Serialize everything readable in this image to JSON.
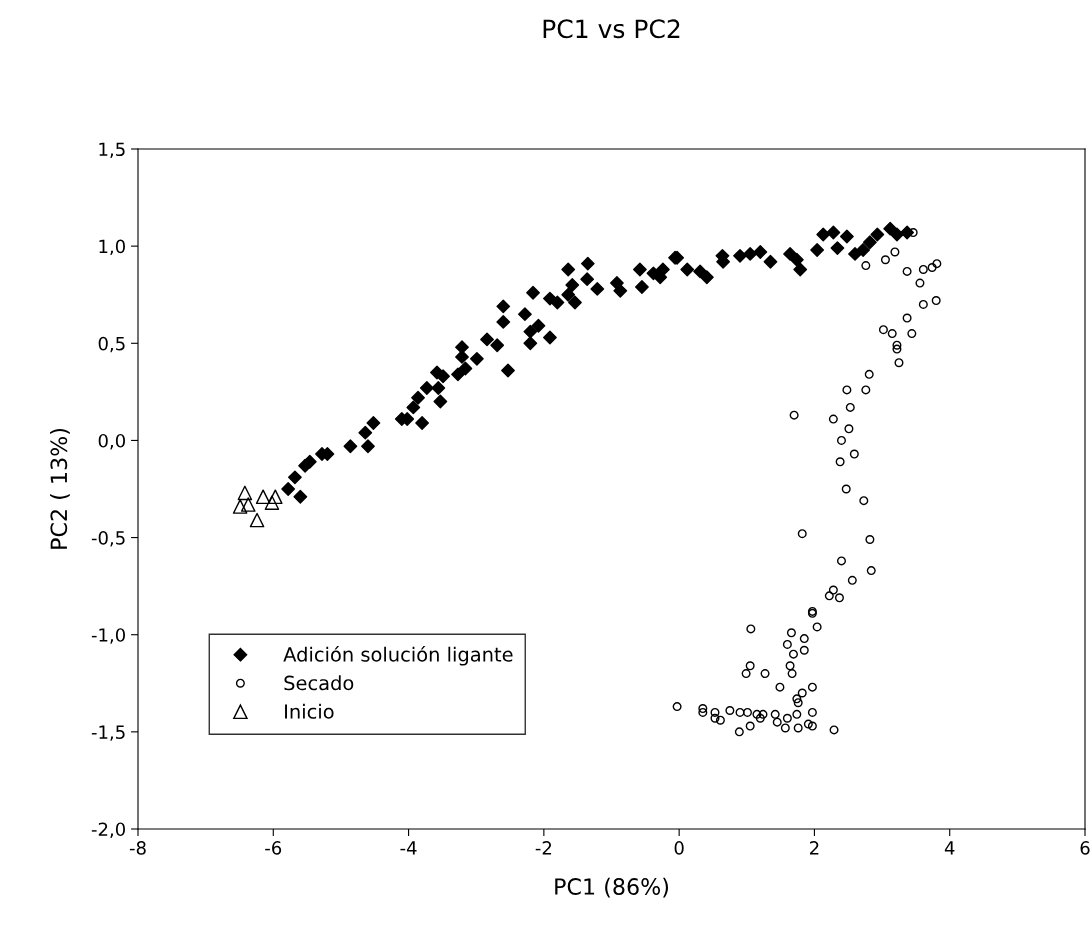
{
  "chart_data": {
    "type": "scatter",
    "title": "PC1 vs PC2",
    "xlabel": "PC1 (86%)",
    "ylabel": "PC2 ( 13%)",
    "xlim": [
      -8,
      6
    ],
    "xticks": [
      -8,
      -6,
      -4,
      -2,
      0,
      2,
      4,
      6
    ],
    "ylim": [
      -2.0,
      1.5
    ],
    "yticks": [
      {
        "value": -2.0,
        "label": "-2,0"
      },
      {
        "value": -1.5,
        "label": "-1,5"
      },
      {
        "value": -1.0,
        "label": "-1,0"
      },
      {
        "value": -0.5,
        "label": "-0,5"
      },
      {
        "value": 0.0,
        "label": "0,0"
      },
      {
        "value": 0.5,
        "label": "0,5"
      },
      {
        "value": 1.0,
        "label": "1,0"
      },
      {
        "value": 1.5,
        "label": "1,5"
      }
    ],
    "grid": false,
    "legend": "lower left",
    "series": [
      {
        "name": "Adición solución ligante",
        "color": "#000000",
        "marker": "diamond",
        "x": [
          -5.78,
          -5.6,
          -5.68,
          -5.53,
          -5.46,
          -5.28,
          -5.2,
          -4.86,
          -4.64,
          -4.6,
          -4.52,
          -4.1,
          -4.02,
          -3.8,
          -3.93,
          -3.86,
          -3.73,
          -3.56,
          -3.53,
          -3.58,
          -3.49,
          -3.27,
          -3.16,
          -3.21,
          -3.21,
          -2.99,
          -2.84,
          -2.69,
          -2.53,
          -2.6,
          -2.6,
          -2.28,
          -2.2,
          -2.2,
          -2.08,
          -1.91,
          -2.16,
          -1.91,
          -1.8,
          -1.64,
          -1.54,
          -1.64,
          -1.58,
          -1.35,
          -1.36,
          -1.21,
          -0.92,
          -0.87,
          -0.55,
          -0.58,
          -0.38,
          -0.24,
          -0.03,
          -0.28,
          -0.06,
          0.12,
          0.31,
          0.41,
          0.64,
          0.65,
          0.9,
          1.05,
          1.2,
          1.35,
          1.64,
          1.74,
          1.79,
          2.04,
          2.13,
          2.28,
          2.34,
          2.48,
          2.6,
          2.72,
          2.82,
          2.93,
          3.12,
          3.22,
          3.37
        ],
        "values": [
          -0.25,
          -0.29,
          -0.19,
          -0.13,
          -0.11,
          -0.07,
          -0.07,
          -0.03,
          0.04,
          -0.03,
          0.09,
          0.11,
          0.11,
          0.09,
          0.17,
          0.22,
          0.27,
          0.27,
          0.2,
          0.35,
          0.33,
          0.34,
          0.37,
          0.43,
          0.48,
          0.42,
          0.52,
          0.49,
          0.36,
          0.61,
          0.69,
          0.65,
          0.56,
          0.5,
          0.59,
          0.53,
          0.76,
          0.73,
          0.71,
          0.75,
          0.71,
          0.88,
          0.8,
          0.91,
          0.83,
          0.78,
          0.81,
          0.77,
          0.79,
          0.88,
          0.86,
          0.88,
          0.94,
          0.84,
          0.94,
          0.88,
          0.87,
          0.84,
          0.95,
          0.92,
          0.95,
          0.96,
          0.97,
          0.92,
          0.96,
          0.93,
          0.88,
          0.98,
          1.06,
          1.07,
          0.99,
          1.05,
          0.96,
          0.98,
          1.02,
          1.06,
          1.09,
          1.06,
          1.07
        ]
      },
      {
        "name": "Secado",
        "color": "#000000",
        "marker": "circle",
        "x": [
          3.46,
          3.19,
          3.05,
          2.76,
          3.37,
          3.61,
          3.74,
          3.81,
          3.56,
          3.61,
          3.8,
          3.37,
          3.02,
          3.15,
          3.44,
          3.22,
          3.22,
          3.25,
          2.81,
          2.48,
          2.76,
          2.53,
          2.28,
          2.51,
          2.4,
          2.59,
          1.7,
          2.38,
          2.47,
          2.73,
          1.82,
          2.82,
          2.4,
          2.84,
          2.56,
          2.28,
          2.22,
          2.37,
          1.97,
          1.97,
          2.04,
          1.06,
          1.66,
          1.85,
          1.6,
          1.85,
          1.69,
          1.64,
          1.67,
          1.05,
          0.99,
          1.27,
          1.49,
          1.97,
          1.82,
          1.74,
          1.76,
          -0.03,
          0.35,
          0.35,
          0.53,
          0.75,
          0.9,
          1.01,
          1.15,
          1.24,
          1.42,
          1.6,
          1.74,
          1.97,
          0.61,
          1.45,
          1.91,
          0.89,
          1.05,
          1.57,
          1.76,
          1.97,
          2.29,
          0.53,
          1.2
        ],
        "values": [
          1.07,
          0.97,
          0.93,
          0.9,
          0.87,
          0.88,
          0.89,
          0.91,
          0.81,
          0.7,
          0.72,
          0.63,
          0.57,
          0.55,
          0.55,
          0.49,
          0.47,
          0.4,
          0.34,
          0.26,
          0.26,
          0.17,
          0.11,
          0.06,
          0.0,
          -0.07,
          0.13,
          -0.11,
          -0.25,
          -0.31,
          -0.48,
          -0.51,
          -0.62,
          -0.67,
          -0.72,
          -0.77,
          -0.8,
          -0.81,
          -0.88,
          -0.89,
          -0.96,
          -0.97,
          -0.99,
          -1.02,
          -1.05,
          -1.08,
          -1.1,
          -1.16,
          -1.2,
          -1.16,
          -1.2,
          -1.2,
          -1.27,
          -1.27,
          -1.3,
          -1.33,
          -1.35,
          -1.37,
          -1.38,
          -1.4,
          -1.4,
          -1.39,
          -1.4,
          -1.4,
          -1.41,
          -1.41,
          -1.41,
          -1.43,
          -1.41,
          -1.4,
          -1.44,
          -1.45,
          -1.46,
          -1.5,
          -1.47,
          -1.48,
          -1.48,
          -1.47,
          -1.49,
          -1.43,
          -1.43
        ]
      },
      {
        "name": "Inicio",
        "color": "#000000",
        "marker": "triangle",
        "x": [
          -6.42,
          -6.37,
          -6.15,
          -5.97,
          -6.24,
          -6.02,
          -6.49
        ],
        "values": [
          -0.27,
          -0.33,
          -0.29,
          -0.29,
          -0.41,
          -0.32,
          -0.34
        ]
      }
    ]
  }
}
